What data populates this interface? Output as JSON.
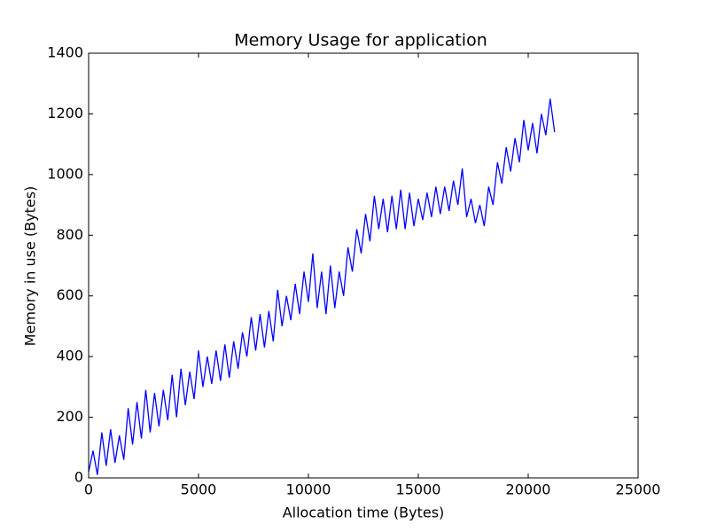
{
  "chart_data": {
    "type": "line",
    "title": "Memory Usage for application",
    "x_label": "Allocation time (Bytes)",
    "y_label": "Memory in use (Bytes)",
    "color": "#0000ff",
    "x": [
      0,
      200,
      400,
      600,
      800,
      1000,
      1200,
      1400,
      1600,
      1800,
      2000,
      2200,
      2400,
      2600,
      2800,
      3000,
      3200,
      3400,
      3600,
      3800,
      4000,
      4200,
      4400,
      4600,
      4800,
      5000,
      5200,
      5400,
      5600,
      5800,
      6000,
      6200,
      6400,
      6600,
      6800,
      7000,
      7200,
      7400,
      7600,
      7800,
      8000,
      8200,
      8400,
      8600,
      8800,
      9000,
      9200,
      9400,
      9600,
      9800,
      10000,
      10200,
      10400,
      10600,
      10800,
      11000,
      11200,
      11400,
      11600,
      11800,
      12000,
      12200,
      12400,
      12600,
      12800,
      13000,
      13200,
      13400,
      13600,
      13800,
      14000,
      14200,
      14400,
      14600,
      14800,
      15000,
      15200,
      15400,
      15600,
      15800,
      16000,
      16200,
      16400,
      16600,
      16800,
      17000,
      17200,
      17400,
      17600,
      17800,
      18000,
      18200,
      18400,
      18600,
      18800,
      19000,
      19200,
      19400,
      19600,
      19800,
      20000,
      20200,
      20400,
      20600,
      20800,
      21000,
      21200
    ],
    "values": [
      20,
      90,
      10,
      150,
      40,
      160,
      50,
      140,
      60,
      230,
      110,
      250,
      130,
      290,
      150,
      280,
      170,
      290,
      190,
      340,
      200,
      360,
      240,
      350,
      260,
      420,
      300,
      400,
      310,
      420,
      320,
      440,
      330,
      450,
      360,
      480,
      400,
      530,
      420,
      540,
      430,
      550,
      450,
      620,
      500,
      600,
      520,
      640,
      540,
      680,
      580,
      740,
      560,
      680,
      540,
      700,
      560,
      680,
      600,
      760,
      680,
      820,
      740,
      870,
      780,
      930,
      820,
      920,
      810,
      930,
      820,
      950,
      820,
      940,
      830,
      920,
      850,
      940,
      860,
      960,
      870,
      960,
      880,
      980,
      900,
      1020,
      860,
      920,
      840,
      900,
      830,
      960,
      900,
      1040,
      970,
      1090,
      1010,
      1120,
      1040,
      1180,
      1080,
      1170,
      1070,
      1200,
      1130,
      1250,
      1140
    ],
    "xlim": [
      0,
      25000
    ],
    "xticks": [
      0,
      5000,
      10000,
      15000,
      20000,
      25000
    ],
    "ylim": [
      0,
      1400
    ],
    "yticks": [
      0,
      200,
      400,
      600,
      800,
      1000,
      1200,
      1400
    ]
  }
}
